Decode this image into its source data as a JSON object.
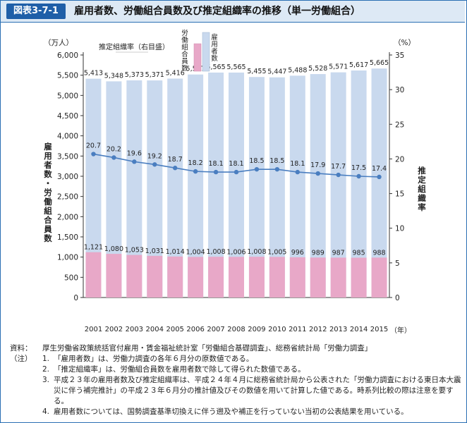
{
  "figure": {
    "label": "図表3-7-1",
    "title": "雇用者数、労働組合員数及び推定組織率の推移（単一労働組合）"
  },
  "chart_data": {
    "type": "bar",
    "title": "雇用者数、労働組合員数及び推定組織率の推移（単一労働組合）",
    "categories": [
      "2001",
      "2002",
      "2003",
      "2004",
      "2005",
      "2006",
      "2007",
      "2008",
      "2009",
      "2010",
      "2011",
      "2012",
      "2013",
      "2014",
      "2015"
    ],
    "x_unit": "（年）",
    "left_axis": {
      "unit": "（万人）",
      "label": "雇用者数・労働組合員数",
      "ylim": [
        0,
        6000
      ],
      "ticks": [
        "0",
        "500",
        "1,000",
        "1,500",
        "2,000",
        "2,500",
        "3,000",
        "3,500",
        "4,000",
        "4,500",
        "5,000",
        "5,500",
        "6,000"
      ]
    },
    "right_axis": {
      "unit": "（%）",
      "label": "推定組織率",
      "ylim": [
        0,
        35
      ],
      "ticks": [
        "0",
        "5",
        "10",
        "15",
        "20",
        "25",
        "30",
        "35"
      ]
    },
    "series": [
      {
        "name": "雇用者数",
        "kind": "bar",
        "axis": "left",
        "color": "#c9d9ee",
        "values": [
          5413,
          5348,
          5373,
          5371,
          5416,
          5517,
          5565,
          5565,
          5455,
          5447,
          5488,
          5528,
          5571,
          5617,
          5665
        ],
        "labels": [
          "5,413",
          "5,348",
          "5,373",
          "5,371",
          "5,416",
          "5,517",
          "5,565",
          "5,565",
          "5,455",
          "5,447",
          "5,488",
          "5,528",
          "5,571",
          "5,617",
          "5,665"
        ]
      },
      {
        "name": "労働組合員数",
        "kind": "bar",
        "axis": "left",
        "color": "#e8a8c8",
        "values": [
          1121,
          1080,
          1053,
          1031,
          1014,
          1004,
          1008,
          1006,
          1008,
          1005,
          996,
          989,
          987,
          985,
          988
        ],
        "labels": [
          "1,121",
          "1,080",
          "1,053",
          "1,031",
          "1,014",
          "1,004",
          "1,008",
          "1,006",
          "1,008",
          "1,005",
          "996",
          "989",
          "987",
          "985",
          "988"
        ]
      },
      {
        "name": "推定組織率（右目盛）",
        "kind": "line",
        "axis": "right",
        "color": "#4a7ec0",
        "values": [
          20.7,
          20.2,
          19.6,
          19.2,
          18.7,
          18.2,
          18.1,
          18.1,
          18.5,
          18.5,
          18.1,
          17.9,
          17.7,
          17.5,
          17.4
        ],
        "labels": [
          "20.7",
          "20.2",
          "19.6",
          "19.2",
          "18.7",
          "18.2",
          "18.1",
          "18.1",
          "18.5",
          "18.5",
          "18.1",
          "17.9",
          "17.7",
          "17.5",
          "17.4"
        ]
      }
    ],
    "grid": false
  },
  "notes": {
    "source_prefix": "資料：",
    "source": "厚生労働省政策統括官付雇用・賃金福祉統計室「労働組合基礎調査」、総務省統計局「労働力調査」",
    "note_prefix": "（注）",
    "items": [
      {
        "num": "1.",
        "text": "「雇用者数」は、労働力調査の各年６月分の原数値である。"
      },
      {
        "num": "2.",
        "text": "「推定組織率」は、労働組合員数を雇用者数で除して得られた数値である。"
      },
      {
        "num": "3.",
        "text": "平成２３年の雇用者数及び推定組織率は、平成２４年４月に総務省統計局から公表された「労働力調査における東日本大震災に伴う補完推計」の平成２３年６月分の推計値及びその数値を用いて計算した値である。時系列比較の際は注意を要する。"
      },
      {
        "num": "4.",
        "text": "雇用者数については、国勢調査基準切換えに伴う遡及や補正を行っていない当初の公表結果を用いている。"
      }
    ]
  }
}
